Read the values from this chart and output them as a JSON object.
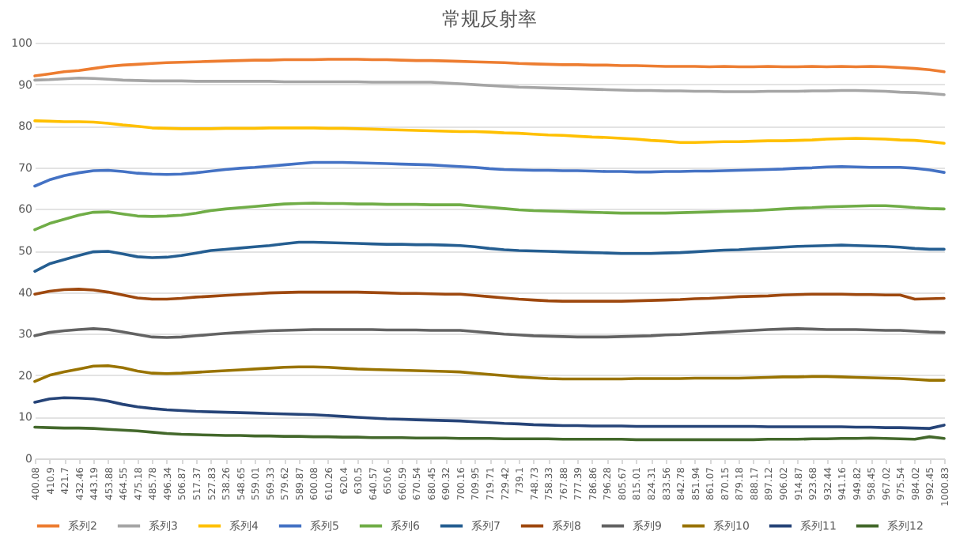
{
  "chart_data": {
    "type": "line",
    "title": "常规反射率",
    "categories": [
      "400.08",
      "410.9",
      "421.7",
      "432.46",
      "443.19",
      "453.88",
      "464.55",
      "475.18",
      "485.78",
      "496.34",
      "506.87",
      "517.37",
      "527.83",
      "538.26",
      "548.65",
      "559.01",
      "569.33",
      "579.62",
      "589.87",
      "600.08",
      "610.26",
      "620.4",
      "630.5",
      "640.57",
      "650.6",
      "660.59",
      "670.54",
      "680.45",
      "690.32",
      "700.16",
      "709.95",
      "719.71",
      "729.42",
      "739.1",
      "748.73",
      "758.33",
      "767.88",
      "777.39",
      "786.86",
      "796.28",
      "805.67",
      "815.01",
      "824.31",
      "833.56",
      "842.78",
      "851.94",
      "861.07",
      "870.15",
      "879.18",
      "888.17",
      "897.12",
      "906.02",
      "914.87",
      "923.68",
      "932.44",
      "941.16",
      "949.82",
      "958.45",
      "967.02",
      "975.54",
      "984.02",
      "992.45",
      "1000.83"
    ],
    "ylim": [
      0,
      100
    ],
    "yticks": [
      0,
      10,
      20,
      30,
      40,
      50,
      60,
      70,
      80,
      90,
      100
    ],
    "grid": "y",
    "legend": "bottom",
    "series": [
      {
        "name": "系列2",
        "color": "#ed7d31",
        "values": [
          92,
          92.5,
          93,
          93.3,
          93.8,
          94.3,
          94.6,
          94.8,
          95,
          95.2,
          95.3,
          95.4,
          95.5,
          95.6,
          95.7,
          95.8,
          95.8,
          95.9,
          95.9,
          95.9,
          96,
          96,
          96,
          95.9,
          95.9,
          95.8,
          95.7,
          95.7,
          95.6,
          95.5,
          95.4,
          95.3,
          95.2,
          95,
          94.9,
          94.8,
          94.7,
          94.7,
          94.6,
          94.6,
          94.5,
          94.5,
          94.4,
          94.3,
          94.3,
          94.3,
          94.2,
          94.3,
          94.2,
          94.2,
          94.3,
          94.2,
          94.2,
          94.3,
          94.2,
          94.3,
          94.2,
          94.3,
          94.2,
          94,
          93.8,
          93.5,
          93
        ]
      },
      {
        "name": "系列3",
        "color": "#a5a5a5",
        "values": [
          91,
          91.1,
          91.3,
          91.5,
          91.4,
          91.2,
          91,
          90.9,
          90.8,
          90.8,
          90.8,
          90.7,
          90.7,
          90.7,
          90.7,
          90.7,
          90.7,
          90.6,
          90.6,
          90.6,
          90.6,
          90.6,
          90.6,
          90.5,
          90.5,
          90.5,
          90.5,
          90.5,
          90.3,
          90.1,
          89.9,
          89.7,
          89.5,
          89.3,
          89.2,
          89.1,
          89,
          88.9,
          88.8,
          88.7,
          88.6,
          88.5,
          88.5,
          88.4,
          88.4,
          88.3,
          88.3,
          88.2,
          88.2,
          88.2,
          88.3,
          88.3,
          88.3,
          88.4,
          88.4,
          88.5,
          88.5,
          88.4,
          88.3,
          88.1,
          88,
          87.8,
          87.5
        ]
      },
      {
        "name": "系列4",
        "color": "#ffc000",
        "values": [
          81.2,
          81.1,
          81,
          81,
          80.9,
          80.6,
          80.2,
          79.9,
          79.5,
          79.4,
          79.3,
          79.3,
          79.3,
          79.4,
          79.4,
          79.4,
          79.5,
          79.5,
          79.5,
          79.5,
          79.4,
          79.4,
          79.3,
          79.2,
          79.1,
          79,
          78.9,
          78.8,
          78.7,
          78.6,
          78.6,
          78.5,
          78.3,
          78.2,
          78,
          77.8,
          77.7,
          77.5,
          77.3,
          77.2,
          77,
          76.8,
          76.5,
          76.3,
          76,
          76,
          76.1,
          76.2,
          76.2,
          76.3,
          76.4,
          76.4,
          76.5,
          76.6,
          76.8,
          76.9,
          77,
          76.9,
          76.8,
          76.6,
          76.5,
          76.2,
          75.8
        ]
      },
      {
        "name": "系列5",
        "color": "#4472c4",
        "values": [
          65.5,
          67,
          68,
          68.7,
          69.2,
          69.3,
          69,
          68.6,
          68.4,
          68.3,
          68.4,
          68.7,
          69.1,
          69.5,
          69.8,
          70,
          70.3,
          70.6,
          70.9,
          71.2,
          71.2,
          71.2,
          71.1,
          71,
          70.9,
          70.8,
          70.7,
          70.6,
          70.4,
          70.2,
          70,
          69.7,
          69.5,
          69.4,
          69.3,
          69.3,
          69.2,
          69.2,
          69.1,
          69,
          69,
          68.9,
          68.9,
          69,
          69,
          69.1,
          69.1,
          69.2,
          69.3,
          69.4,
          69.5,
          69.6,
          69.8,
          69.9,
          70.1,
          70.2,
          70.1,
          70,
          70,
          70,
          69.8,
          69.4,
          68.8
        ]
      },
      {
        "name": "系列6",
        "color": "#70ad47",
        "values": [
          55,
          56.5,
          57.5,
          58.5,
          59.2,
          59.3,
          58.8,
          58.3,
          58.2,
          58.3,
          58.5,
          59,
          59.6,
          60,
          60.3,
          60.6,
          60.9,
          61.2,
          61.3,
          61.4,
          61.3,
          61.3,
          61.2,
          61.2,
          61.1,
          61.1,
          61.1,
          61,
          61,
          61,
          60.7,
          60.4,
          60.1,
          59.8,
          59.6,
          59.5,
          59.4,
          59.3,
          59.2,
          59.1,
          59,
          59,
          59,
          59,
          59.1,
          59.2,
          59.3,
          59.4,
          59.5,
          59.6,
          59.8,
          60,
          60.2,
          60.3,
          60.5,
          60.6,
          60.7,
          60.8,
          60.8,
          60.6,
          60.3,
          60.1,
          60
        ]
      },
      {
        "name": "系列7",
        "color": "#255e91",
        "values": [
          45,
          46.8,
          47.8,
          48.8,
          49.7,
          49.8,
          49.2,
          48.5,
          48.3,
          48.4,
          48.8,
          49.4,
          50,
          50.3,
          50.6,
          50.9,
          51.2,
          51.6,
          52,
          52,
          51.9,
          51.8,
          51.7,
          51.6,
          51.5,
          51.5,
          51.4,
          51.4,
          51.3,
          51.2,
          50.9,
          50.5,
          50.2,
          50,
          49.9,
          49.8,
          49.7,
          49.6,
          49.5,
          49.4,
          49.3,
          49.3,
          49.3,
          49.4,
          49.5,
          49.7,
          49.9,
          50.1,
          50.2,
          50.4,
          50.6,
          50.8,
          51,
          51.1,
          51.2,
          51.3,
          51.2,
          51.1,
          51,
          50.8,
          50.5,
          50.3,
          50.3
        ]
      },
      {
        "name": "系列8",
        "color": "#9e480e",
        "values": [
          39.5,
          40.2,
          40.6,
          40.7,
          40.5,
          40,
          39.3,
          38.6,
          38.3,
          38.3,
          38.5,
          38.8,
          39,
          39.2,
          39.4,
          39.6,
          39.8,
          39.9,
          40,
          40,
          40,
          40,
          40,
          39.9,
          39.8,
          39.7,
          39.7,
          39.6,
          39.5,
          39.5,
          39.2,
          38.9,
          38.6,
          38.3,
          38.1,
          37.9,
          37.8,
          37.8,
          37.8,
          37.8,
          37.8,
          37.9,
          38,
          38.1,
          38.2,
          38.4,
          38.5,
          38.7,
          38.9,
          39,
          39.1,
          39.3,
          39.4,
          39.5,
          39.5,
          39.5,
          39.4,
          39.4,
          39.3,
          39.3,
          38.3,
          38.4,
          38.5
        ]
      },
      {
        "name": "系列9",
        "color": "#636363",
        "values": [
          29.5,
          30.3,
          30.7,
          31,
          31.2,
          31,
          30.4,
          29.8,
          29.2,
          29.1,
          29.2,
          29.5,
          29.8,
          30.1,
          30.3,
          30.5,
          30.7,
          30.8,
          30.9,
          31,
          31,
          31,
          31,
          31,
          30.9,
          30.9,
          30.9,
          30.8,
          30.8,
          30.8,
          30.5,
          30.2,
          29.9,
          29.7,
          29.5,
          29.4,
          29.3,
          29.2,
          29.2,
          29.2,
          29.3,
          29.4,
          29.5,
          29.7,
          29.8,
          30,
          30.2,
          30.4,
          30.6,
          30.8,
          31,
          31.1,
          31.2,
          31.1,
          31,
          31,
          31,
          30.9,
          30.8,
          30.8,
          30.6,
          30.4,
          30.3
        ]
      },
      {
        "name": "系列10",
        "color": "#997300",
        "values": [
          18.5,
          20,
          20.8,
          21.5,
          22.2,
          22.3,
          21.8,
          21,
          20.5,
          20.4,
          20.5,
          20.7,
          20.9,
          21.1,
          21.3,
          21.5,
          21.7,
          21.9,
          22,
          22,
          21.9,
          21.7,
          21.5,
          21.4,
          21.3,
          21.2,
          21.1,
          21,
          20.9,
          20.8,
          20.5,
          20.2,
          19.9,
          19.6,
          19.4,
          19.2,
          19.1,
          19.1,
          19.1,
          19.1,
          19.1,
          19.2,
          19.2,
          19.2,
          19.2,
          19.3,
          19.3,
          19.3,
          19.3,
          19.4,
          19.5,
          19.6,
          19.6,
          19.7,
          19.7,
          19.6,
          19.5,
          19.4,
          19.3,
          19.2,
          19,
          18.8,
          18.8
        ]
      },
      {
        "name": "系列11",
        "color": "#264478",
        "values": [
          13.5,
          14.3,
          14.6,
          14.5,
          14.3,
          13.8,
          13,
          12.4,
          12,
          11.7,
          11.5,
          11.3,
          11.2,
          11.1,
          11,
          10.9,
          10.8,
          10.7,
          10.6,
          10.5,
          10.3,
          10.1,
          9.9,
          9.7,
          9.5,
          9.4,
          9.3,
          9.2,
          9.1,
          9,
          8.8,
          8.6,
          8.4,
          8.3,
          8.1,
          8,
          7.9,
          7.9,
          7.8,
          7.8,
          7.8,
          7.7,
          7.7,
          7.7,
          7.7,
          7.7,
          7.7,
          7.7,
          7.7,
          7.7,
          7.6,
          7.6,
          7.6,
          7.6,
          7.6,
          7.6,
          7.5,
          7.5,
          7.4,
          7.4,
          7.3,
          7.2,
          8
        ]
      },
      {
        "name": "系列12",
        "color": "#43682b",
        "values": [
          7.5,
          7.4,
          7.3,
          7.3,
          7.2,
          7,
          6.8,
          6.6,
          6.3,
          6,
          5.8,
          5.7,
          5.6,
          5.5,
          5.5,
          5.4,
          5.4,
          5.3,
          5.3,
          5.2,
          5.2,
          5.1,
          5.1,
          5,
          5,
          5,
          4.9,
          4.9,
          4.9,
          4.8,
          4.8,
          4.8,
          4.7,
          4.7,
          4.7,
          4.7,
          4.6,
          4.6,
          4.6,
          4.6,
          4.6,
          4.5,
          4.5,
          4.5,
          4.5,
          4.5,
          4.5,
          4.5,
          4.5,
          4.5,
          4.6,
          4.6,
          4.6,
          4.7,
          4.7,
          4.8,
          4.8,
          4.9,
          4.8,
          4.7,
          4.6,
          5.2,
          4.8
        ]
      }
    ]
  }
}
